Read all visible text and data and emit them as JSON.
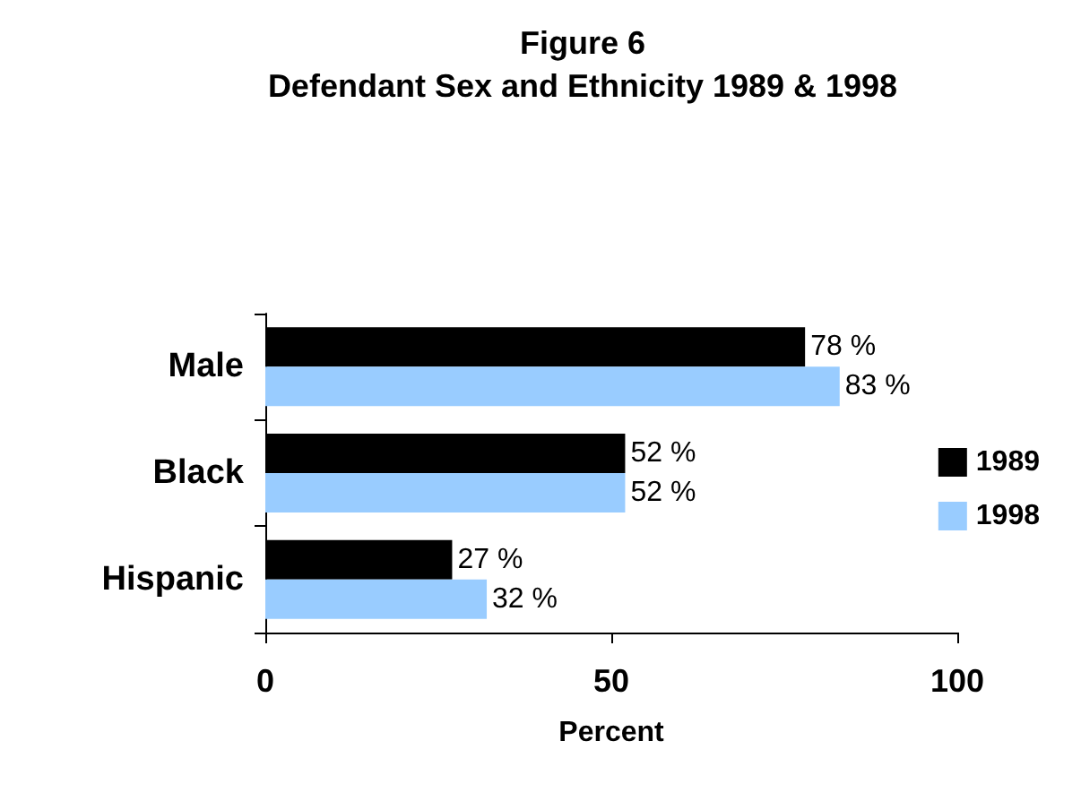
{
  "chart_data": {
    "type": "bar",
    "orientation": "horizontal",
    "title": "Figure 6",
    "subtitle": "Defendant Sex and Ethnicity 1989 & 1998",
    "xlabel": "Percent",
    "categories": [
      "Male",
      "Black",
      "Hispanic"
    ],
    "series": [
      {
        "name": "1989",
        "color": "#000000",
        "values": [
          78,
          52,
          27
        ],
        "value_labels": [
          "78 %",
          "52 %",
          "27 %"
        ]
      },
      {
        "name": "1998",
        "color": "#99ccff",
        "values": [
          83,
          52,
          32
        ],
        "value_labels": [
          "83 %",
          "52 %",
          "32 %"
        ]
      }
    ],
    "xlim": [
      0,
      100
    ],
    "xticks": [
      0,
      50,
      100
    ],
    "grid": false,
    "legend": "right"
  }
}
